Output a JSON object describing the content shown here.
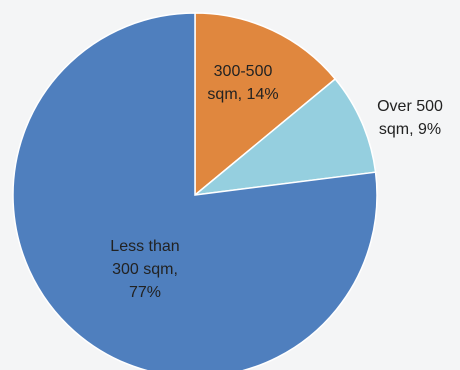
{
  "chart_data": {
    "type": "pie",
    "start_angle_deg": 0,
    "direction": "clockwise",
    "slices": [
      {
        "name": "300-500 sqm",
        "value": 14,
        "color": "#e0873e",
        "label": [
          "300-500",
          "sqm, 14%"
        ]
      },
      {
        "name": "Over 500 sqm",
        "value": 9,
        "color": "#95cfdf",
        "label": [
          "Over 500",
          "sqm, 9%"
        ]
      },
      {
        "name": "Less than 300 sqm",
        "value": 77,
        "color": "#4f7fbe",
        "label": [
          "Less than",
          "300 sqm,",
          "77%"
        ]
      }
    ]
  }
}
